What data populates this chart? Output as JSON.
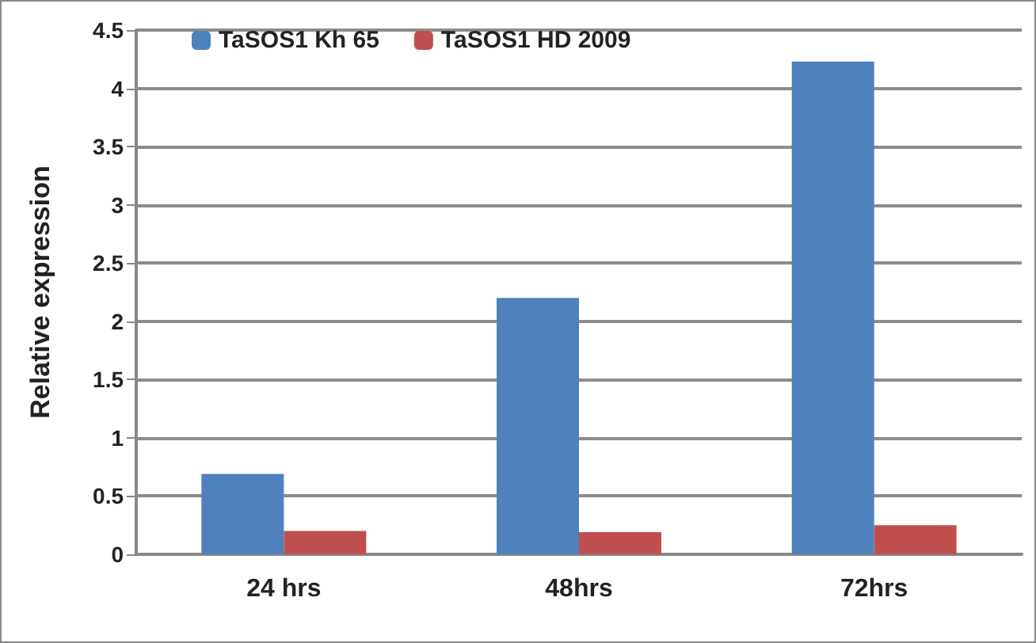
{
  "chart_data": {
    "type": "bar",
    "ylabel": "Relative expression",
    "categories": [
      "24 hrs",
      "48hrs",
      "72hrs"
    ],
    "series": [
      {
        "name": "TaSOS1 Kh 65",
        "color": "#4f81bd",
        "values": [
          0.69,
          2.2,
          4.23
        ]
      },
      {
        "name": "TaSOS1 HD 2009",
        "color": "#c0504d",
        "values": [
          0.2,
          0.19,
          0.25
        ]
      }
    ],
    "ylim": [
      0,
      4.5
    ],
    "yticks": [
      0,
      0.5,
      1,
      1.5,
      2,
      2.5,
      3,
      3.5,
      4,
      4.5
    ],
    "grid": "y",
    "legend": "top left"
  }
}
